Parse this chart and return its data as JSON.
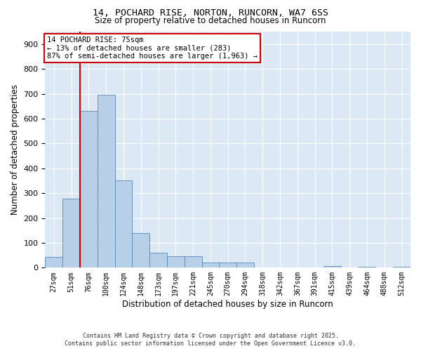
{
  "title_line1": "14, POCHARD RISE, NORTON, RUNCORN, WA7 6SS",
  "title_line2": "Size of property relative to detached houses in Runcorn",
  "xlabel": "Distribution of detached houses by size in Runcorn",
  "ylabel": "Number of detached properties",
  "footnote_line1": "Contains HM Land Registry data © Crown copyright and database right 2025.",
  "footnote_line2": "Contains public sector information licensed under the Open Government Licence v3.0.",
  "annotation_title": "14 POCHARD RISE: 75sqm",
  "annotation_line1": "← 13% of detached houses are smaller (283)",
  "annotation_line2": "87% of semi-detached houses are larger (1,963) →",
  "bar_color": "#b8cfe8",
  "bar_edge_color": "#5588bb",
  "vline_color": "#cc0000",
  "annotation_box_edge": "#cc0000",
  "bg_color": "#dce9f5",
  "categories": [
    "27sqm",
    "51sqm",
    "76sqm",
    "100sqm",
    "124sqm",
    "148sqm",
    "173sqm",
    "197sqm",
    "221sqm",
    "245sqm",
    "270sqm",
    "294sqm",
    "318sqm",
    "342sqm",
    "367sqm",
    "391sqm",
    "415sqm",
    "439sqm",
    "464sqm",
    "488sqm",
    "512sqm"
  ],
  "values": [
    42,
    278,
    630,
    695,
    350,
    140,
    60,
    47,
    47,
    20,
    20,
    20,
    0,
    0,
    0,
    0,
    8,
    0,
    5,
    0,
    5
  ],
  "ylim": [
    0,
    950
  ],
  "yticks": [
    0,
    100,
    200,
    300,
    400,
    500,
    600,
    700,
    800,
    900
  ],
  "vline_x": 1.5,
  "figsize": [
    6.0,
    5.0
  ],
  "dpi": 100
}
